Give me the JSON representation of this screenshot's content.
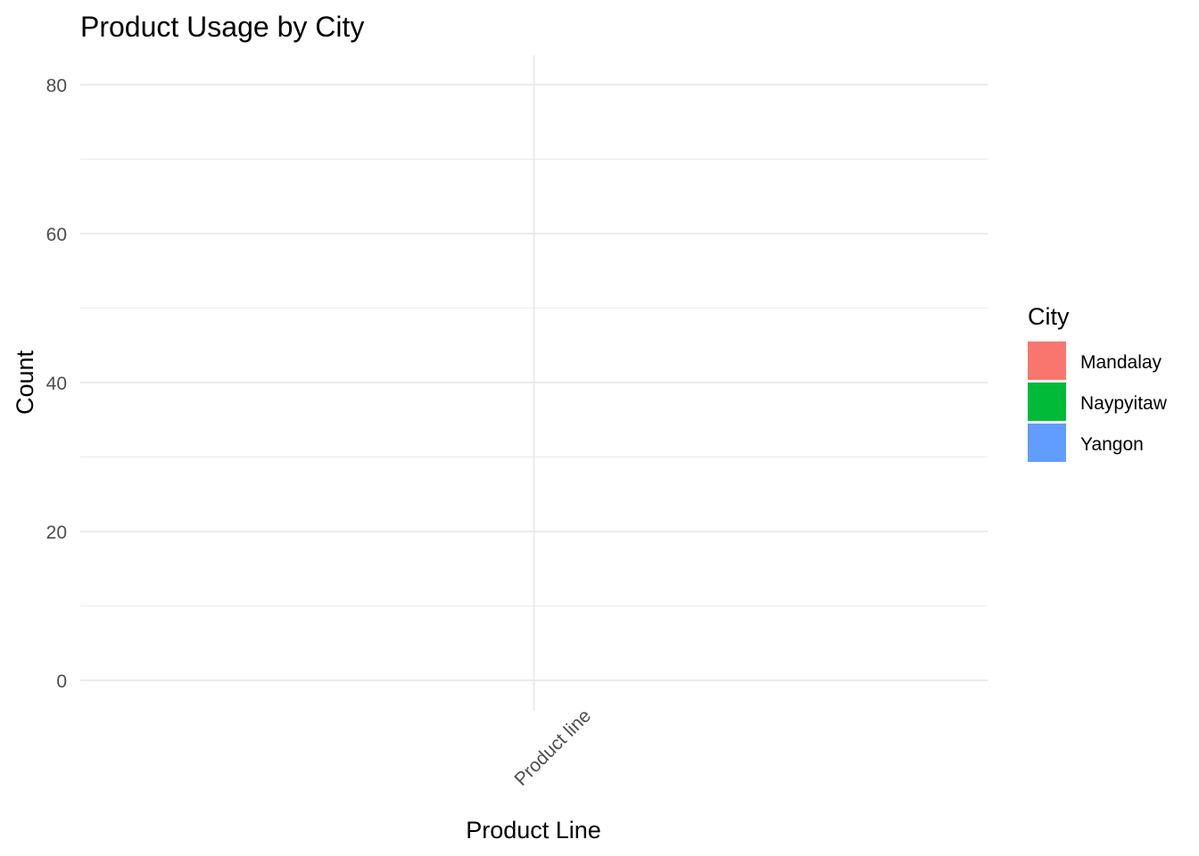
{
  "chart_data": {
    "type": "bar",
    "title": "Product Usage by City",
    "xlabel": "Product Line",
    "ylabel": "Count",
    "categories": [
      "Product line"
    ],
    "series": [
      {
        "name": "Mandalay",
        "values": [
          0
        ],
        "color": "#F8766D"
      },
      {
        "name": "Naypyitaw",
        "values": [
          0
        ],
        "color": "#00BA38"
      },
      {
        "name": "Yangon",
        "values": [
          0
        ],
        "color": "#619CFF"
      }
    ],
    "ylim": [
      0,
      84
    ],
    "yticks": [
      "0",
      "20",
      "40",
      "60",
      "80"
    ],
    "grid": true,
    "legend": {
      "title": "City",
      "placement": "right"
    }
  }
}
